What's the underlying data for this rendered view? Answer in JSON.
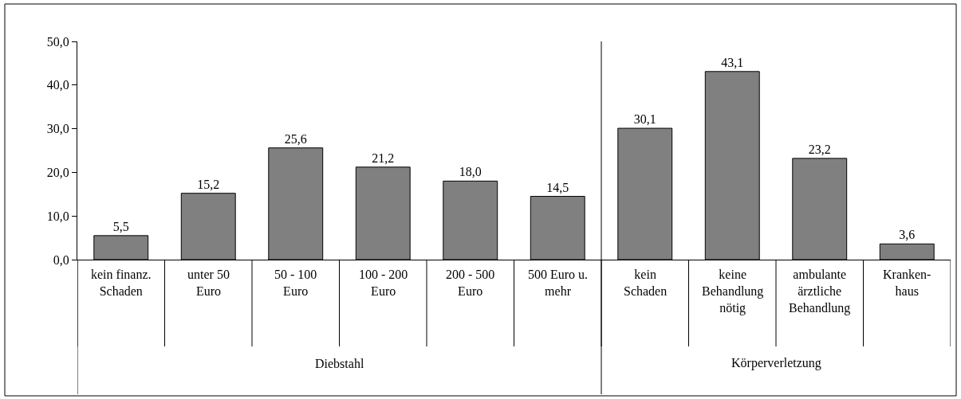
{
  "chart_data": {
    "type": "bar",
    "categories": [
      "kein finanz.\nSchaden",
      "unter 50\nEuro",
      "50 - 100\nEuro",
      "100 - 200\nEuro",
      "200 - 500\nEuro",
      "500 Euro u.\nmehr",
      "kein\nSchaden",
      "keine\nBehandlung\nnötig",
      "ambulante\närztliche\nBehandlung",
      "Kranken-\nhaus"
    ],
    "values": [
      5.5,
      15.2,
      25.6,
      21.2,
      18.0,
      14.5,
      30.1,
      43.1,
      23.2,
      3.6
    ],
    "value_labels": [
      "5,5",
      "15,2",
      "25,6",
      "21,2",
      "18,0",
      "14,5",
      "30,1",
      "43,1",
      "23,2",
      "3,6"
    ],
    "color": "#808080",
    "ylim": [
      0,
      50
    ],
    "yticks": [
      {
        "value": 0,
        "label": "0,0"
      },
      {
        "value": 10,
        "label": "10,0"
      },
      {
        "value": 20,
        "label": "20,0"
      },
      {
        "value": 30,
        "label": "30,0"
      },
      {
        "value": 40,
        "label": "40,0"
      },
      {
        "value": 50,
        "label": "50,0"
      }
    ],
    "annotations": [
      "Diebstahl",
      "Körperverletzung"
    ],
    "legend": false
  }
}
